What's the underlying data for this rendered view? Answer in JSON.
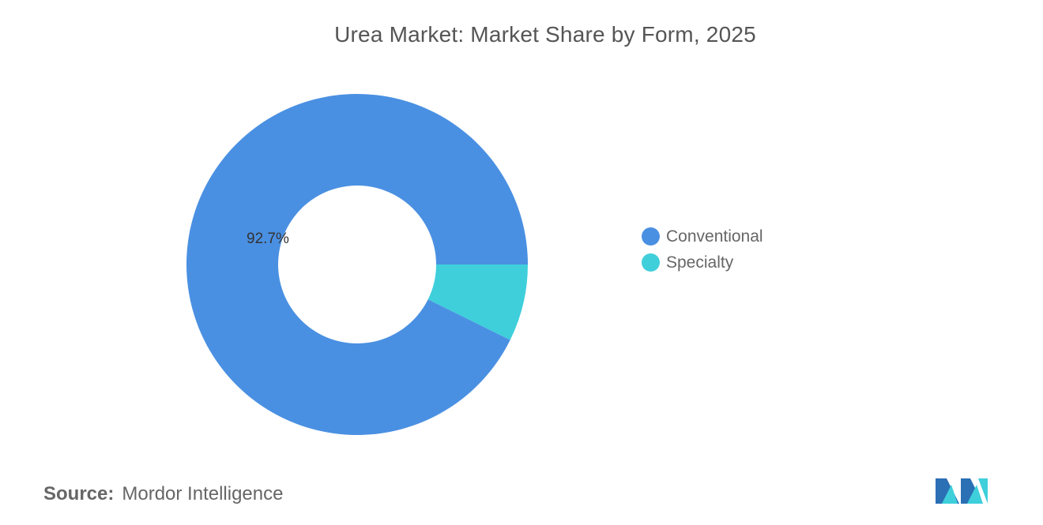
{
  "chart_data": {
    "type": "pie",
    "title": "Urea Market: Market Share by Form, 2025",
    "categories": [
      "Conventional",
      "Specialty"
    ],
    "values": [
      92.7,
      7.3
    ],
    "data_labels": [
      "92.7%",
      ""
    ],
    "colors": [
      "#4A90E2",
      "#3ECFDB"
    ],
    "donut": true,
    "legend_position": "right"
  },
  "source": {
    "label": "Source:",
    "text": "Mordor Intelligence"
  }
}
